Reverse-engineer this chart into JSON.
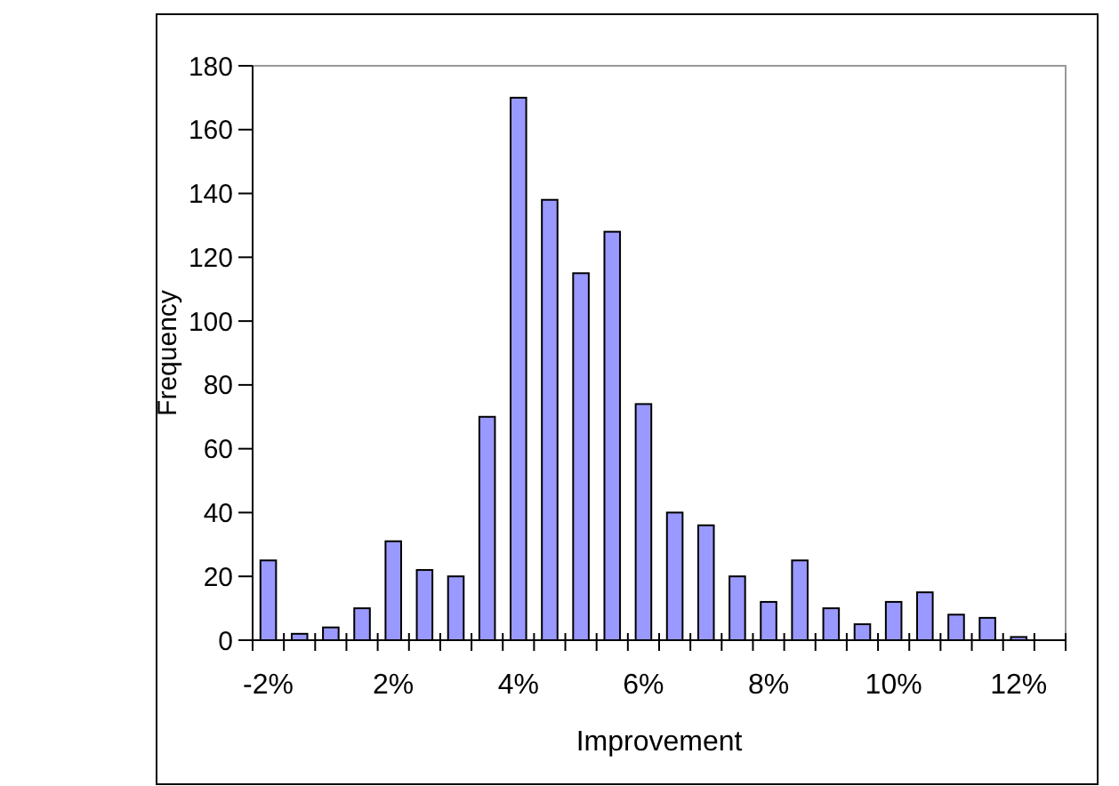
{
  "chart_data": {
    "type": "bar",
    "xlabel": "Improvement",
    "ylabel": "Frequency",
    "categories": [
      "-2%",
      null,
      null,
      null,
      "2%",
      null,
      null,
      null,
      "4%",
      null,
      null,
      null,
      "6%",
      null,
      null,
      null,
      "8%",
      null,
      null,
      null,
      "10%",
      null,
      null,
      null,
      "12%",
      null
    ],
    "values": [
      25,
      2,
      4,
      10,
      31,
      22,
      20,
      70,
      170,
      138,
      115,
      128,
      74,
      40,
      36,
      20,
      12,
      25,
      10,
      5,
      12,
      15,
      8,
      7,
      1,
      null
    ],
    "color": "#9999ff",
    "ylim": [
      0,
      180
    ],
    "yticks": [
      0,
      20,
      40,
      60,
      80,
      100,
      120,
      140,
      160,
      180
    ],
    "grid": false
  }
}
